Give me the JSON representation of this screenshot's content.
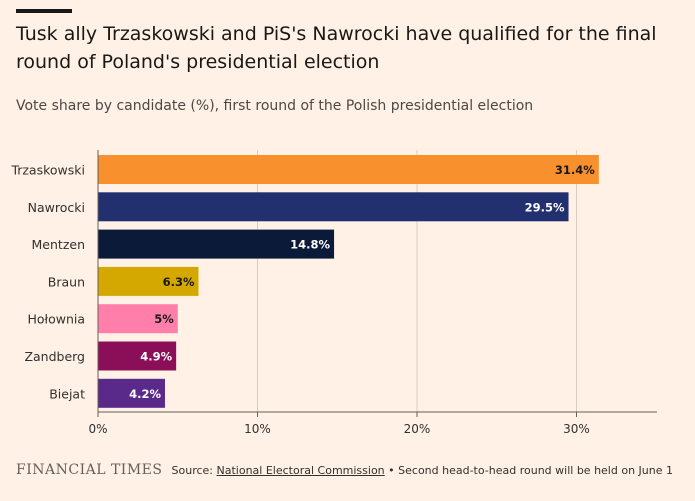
{
  "title": "Tusk ally Trzaskowski and PiS's Nawrocki have qualified for the final round of Poland's presidential election",
  "subtitle": "Vote share by candidate (%), first round of the Polish presidential election",
  "footer": {
    "logo": "FINANCIAL TIMES",
    "source_prefix": "Source:",
    "source_link": "National Electoral Commission",
    "source_note": "• Second head-to-head round will be held on June 1"
  },
  "chart_data": {
    "type": "bar",
    "orientation": "horizontal",
    "categories": [
      "Trzaskowski",
      "Nawrocki",
      "Mentzen",
      "Braun",
      "Hołownia",
      "Zandberg",
      "Biejat"
    ],
    "values": [
      31.4,
      29.5,
      14.8,
      6.3,
      5,
      4.9,
      4.2
    ],
    "data_labels": [
      "31.4%",
      "29.5%",
      "14.8%",
      "6.3%",
      "5%",
      "4.9%",
      "4.2%"
    ],
    "bar_colors": [
      "#f7902d",
      "#22306f",
      "#0c1a3a",
      "#d4a800",
      "#ff7faa",
      "#8b0f58",
      "#5a2a8a"
    ],
    "label_colors": [
      "#1a1817",
      "#ffffff",
      "#ffffff",
      "#1a1817",
      "#1a1817",
      "#ffffff",
      "#ffffff"
    ],
    "xticks": [
      "0%",
      "10%",
      "20%",
      "30%"
    ],
    "xtick_values": [
      0,
      10,
      20,
      30
    ],
    "xlim": [
      0,
      35
    ],
    "grid": "vertical"
  }
}
